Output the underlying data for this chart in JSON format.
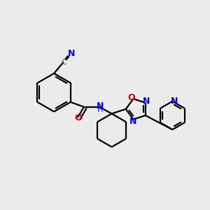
{
  "bg_color": "#ebebeb",
  "bond_color": "#000000",
  "n_color": "#0000ff",
  "o_color": "#cc0000",
  "c_color": "#008080",
  "lw": 1.6,
  "figsize": [
    3.0,
    3.0
  ],
  "dpi": 100,
  "xlim": [
    0,
    10
  ],
  "ylim": [
    0,
    10
  ]
}
